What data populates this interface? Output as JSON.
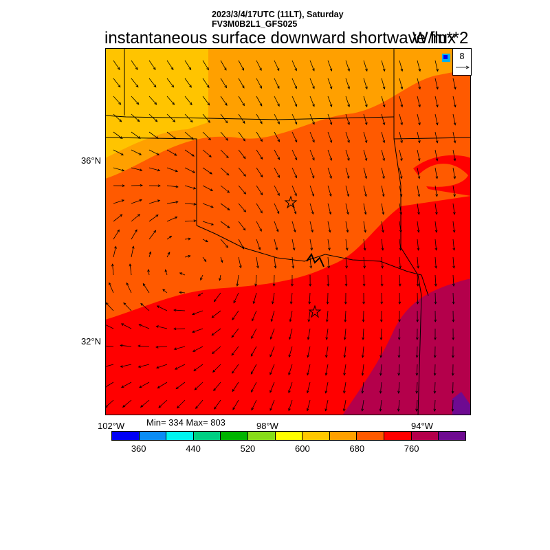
{
  "header": {
    "line1": "2023/3/4/17UTC (11LT), Saturday",
    "line2": "FV3M0B2L1_GFS025",
    "title": "instantaneous surface downward shortwave flux",
    "units": "W/m**2"
  },
  "map": {
    "lat_labels": [
      "36°N",
      "32°N"
    ],
    "lon_labels": [
      "102°W",
      "98°W",
      "94°W"
    ],
    "ref_vector_label": "8",
    "markers": [
      "star",
      "star"
    ]
  },
  "stats": {
    "text": "Min= 334 Max= 803"
  },
  "colorbar": {
    "colors": [
      "#0000f5",
      "#0a8cf5",
      "#00f5f0",
      "#00d083",
      "#00b400",
      "#87dc19",
      "#ffff00",
      "#ffc800",
      "#ffa000",
      "#ff5a00",
      "#ff0000",
      "#b4004b",
      "#6e0a91"
    ],
    "labels": [
      "360",
      "440",
      "520",
      "600",
      "680",
      "760"
    ]
  },
  "chart_data": {
    "type": "heatmap",
    "title": "instantaneous surface downward shortwave flux",
    "units": "W/m**2",
    "colorbar_levels": [
      360,
      400,
      440,
      480,
      520,
      560,
      600,
      640,
      680,
      720,
      760,
      800
    ],
    "colorbar_labels": [
      360,
      440,
      520,
      600,
      680,
      760
    ],
    "min": 334,
    "max": 803,
    "x_axis": "longitude",
    "y_axis": "latitude",
    "lat_ticks": [
      "36°N",
      "32°N"
    ],
    "lon_ticks": [
      "102°W",
      "98°W",
      "94°W"
    ],
    "field_regions": [
      {
        "area": "northern band",
        "range": "640-680"
      },
      {
        "area": "central Oklahoma / northern Texas",
        "range": "680-720"
      },
      {
        "area": "central Texas / southeast",
        "range": "720-760"
      },
      {
        "area": "east Texas / Louisiana",
        "range": "760-800"
      },
      {
        "area": "southeast corner",
        "range": "800+"
      }
    ],
    "wind_vectors": "cyclonic circulation centered in northwest Texas",
    "reference_vector": 8
  }
}
